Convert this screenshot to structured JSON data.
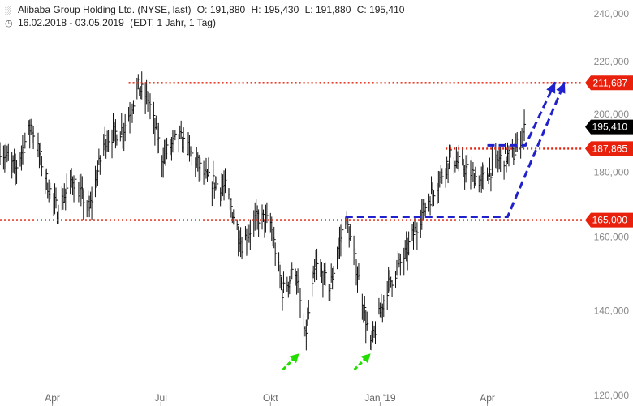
{
  "header": {
    "line1_icon": "candlestick-icon",
    "instrument": "Alibaba Group Holding Ltd. (NYSE, last)",
    "open_label": "O:",
    "open_value": "191,880",
    "high_label": "H:",
    "high_value": "195,430",
    "low_label": "L:",
    "low_value": "191,880",
    "close_label": "C:",
    "close_value": "195,410",
    "line2_icon": "clock-icon",
    "date_range": "16.02.2018 - 03.05.2019",
    "timeframe": "(EDT, 1 Jahr, 1 Tag)"
  },
  "chart_data": {
    "type": "bar",
    "title": "",
    "ylim": [
      120000,
      240000
    ],
    "log_scale": true,
    "grid": false,
    "y_ticks": [
      {
        "value": 240000,
        "label": "240,000"
      },
      {
        "value": 220000,
        "label": "220,000"
      },
      {
        "value": 200000,
        "label": "200,000"
      },
      {
        "value": 180000,
        "label": "180,000"
      },
      {
        "value": 160000,
        "label": "160,000"
      },
      {
        "value": 140000,
        "label": "140,000"
      },
      {
        "value": 120000,
        "label": "120,000"
      }
    ],
    "x_ticks": [
      {
        "date": "2018-04-01",
        "label": "Apr"
      },
      {
        "date": "2018-07-01",
        "label": "Jul"
      },
      {
        "date": "2018-10-01",
        "label": "Okt"
      },
      {
        "date": "2019-01-01",
        "label": "Jan '19"
      },
      {
        "date": "2019-04-01",
        "label": "Apr"
      }
    ],
    "x_range": [
      "2018-02-16",
      "2019-06-20"
    ],
    "price_series": [
      {
        "date": "2018-02-16",
        "value": 188000
      },
      {
        "date": "2018-03-01",
        "value": 181000
      },
      {
        "date": "2018-03-14",
        "value": 196000
      },
      {
        "date": "2018-03-28",
        "value": 176000
      },
      {
        "date": "2018-04-05",
        "value": 168000
      },
      {
        "date": "2018-04-18",
        "value": 178000
      },
      {
        "date": "2018-05-02",
        "value": 168000
      },
      {
        "date": "2018-05-15",
        "value": 191000
      },
      {
        "date": "2018-05-31",
        "value": 195000
      },
      {
        "date": "2018-06-12",
        "value": 210000
      },
      {
        "date": "2018-06-20",
        "value": 206000
      },
      {
        "date": "2018-07-02",
        "value": 185000
      },
      {
        "date": "2018-07-16",
        "value": 192000
      },
      {
        "date": "2018-07-30",
        "value": 184000
      },
      {
        "date": "2018-08-08",
        "value": 178000
      },
      {
        "date": "2018-08-24",
        "value": 175000
      },
      {
        "date": "2018-09-07",
        "value": 158000
      },
      {
        "date": "2018-09-20",
        "value": 166000
      },
      {
        "date": "2018-10-01",
        "value": 164000
      },
      {
        "date": "2018-10-11",
        "value": 145000
      },
      {
        "date": "2018-10-22",
        "value": 151000
      },
      {
        "date": "2018-10-30",
        "value": 133000
      },
      {
        "date": "2018-11-08",
        "value": 152000
      },
      {
        "date": "2018-11-20",
        "value": 146000
      },
      {
        "date": "2018-12-03",
        "value": 166000
      },
      {
        "date": "2018-12-13",
        "value": 150000
      },
      {
        "date": "2018-12-24",
        "value": 131000
      },
      {
        "date": "2019-01-07",
        "value": 146000
      },
      {
        "date": "2019-01-22",
        "value": 155000
      },
      {
        "date": "2019-02-05",
        "value": 167000
      },
      {
        "date": "2019-02-20",
        "value": 178000
      },
      {
        "date": "2019-03-01",
        "value": 185000
      },
      {
        "date": "2019-03-14",
        "value": 181000
      },
      {
        "date": "2019-03-27",
        "value": 177000
      },
      {
        "date": "2019-04-10",
        "value": 184000
      },
      {
        "date": "2019-04-23",
        "value": 186000
      },
      {
        "date": "2019-05-03",
        "value": 195410
      }
    ],
    "horizontal_levels": [
      {
        "value": 211687,
        "label": "211,687",
        "color": "#e8200c",
        "start_date": "2018-06-04"
      },
      {
        "value": 187865,
        "label": "187,865",
        "color": "#e8200c",
        "start_date": "2019-02-25"
      },
      {
        "value": 165000,
        "label": "165,000",
        "color": "#e8200c",
        "start_date": "2018-02-16"
      }
    ],
    "current_price": {
      "value": 195410,
      "label": "195,410",
      "color": "#000000"
    },
    "projection_arrows": {
      "color": "#2020cc",
      "paths": [
        [
          {
            "date": "2018-12-03",
            "value": 166000
          },
          {
            "date": "2019-04-18",
            "value": 166000
          },
          {
            "date": "2019-06-05",
            "value": 212000
          }
        ],
        [
          {
            "date": "2019-04-01",
            "value": 189000
          },
          {
            "date": "2019-05-03",
            "value": 189000
          },
          {
            "date": "2019-05-28",
            "value": 212000
          }
        ]
      ]
    },
    "bottom_arrows": {
      "color": "#22dd00",
      "points": [
        {
          "date": "2018-10-25",
          "value": 129500
        },
        {
          "date": "2018-12-24",
          "value": 129500
        }
      ]
    }
  }
}
